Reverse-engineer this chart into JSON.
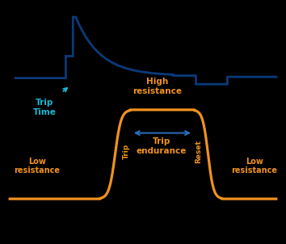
{
  "bg_color": "#000000",
  "blue_line_color": "#0a3a7a",
  "orange_line_color": "#f0921e",
  "cyan_text_color": "#1ab8d4",
  "orange_text_color": "#f0921e",
  "blue_arrow_color": "#2a6fc0",
  "trip_time_label": "Trip\nTime",
  "high_resistance_label": "High\nresistance",
  "low_resistance_left_label": "Low\nresistance",
  "low_resistance_right_label": "Low\nresistance",
  "trip_endurance_label": "Trip\nendurance",
  "trip_vert_left": "Trip",
  "trip_vert_right": "Reset",
  "figsize": [
    3.54,
    3.02
  ],
  "dpi": 100
}
